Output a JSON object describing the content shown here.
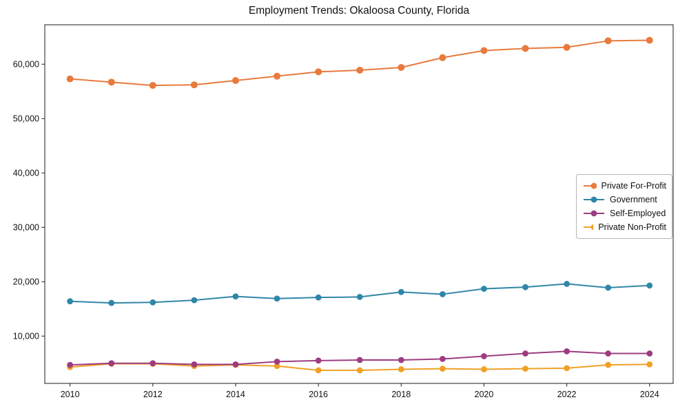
{
  "figure": {
    "title": "Employment Trends: Okaloosa County, Florida"
  },
  "chart_data": {
    "type": "line",
    "title": "Employment Trends: Okaloosa County, Florida",
    "xlabel": "",
    "ylabel": "",
    "grid": false,
    "legend_position": "center right",
    "x": [
      2010,
      2011,
      2012,
      2013,
      2014,
      2015,
      2016,
      2017,
      2018,
      2019,
      2020,
      2021,
      2022,
      2023,
      2024
    ],
    "series": [
      {
        "name": "Private For-Profit",
        "color": "#e87a3d",
        "values": [
          57300,
          56700,
          56100,
          56200,
          57000,
          57800,
          58600,
          58900,
          59400,
          61200,
          62500,
          62900,
          63100,
          64300,
          64400
        ]
      },
      {
        "name": "Government",
        "color": "#2f86a8",
        "values": [
          16400,
          16100,
          16200,
          16600,
          17300,
          16900,
          17100,
          17200,
          18100,
          17700,
          18700,
          19000,
          19600,
          18900,
          19300
        ]
      },
      {
        "name": "Self-Employed",
        "color": "#9d3c80",
        "values": [
          4700,
          5000,
          5000,
          4800,
          4800,
          5300,
          5500,
          5600,
          5600,
          5800,
          6300,
          6800,
          7200,
          6800,
          6800
        ]
      },
      {
        "name": "Private Non-Profit",
        "color": "#f0a126",
        "values": [
          4300,
          4900,
          4900,
          4500,
          4700,
          4500,
          3700,
          3700,
          3900,
          4000,
          3900,
          4000,
          4100,
          4700,
          4800
        ]
      }
    ],
    "xlim": [
      2009.39,
      2024.57
    ],
    "ylim": [
      1300,
      67250
    ],
    "x_ticks": [
      2010,
      2012,
      2014,
      2016,
      2018,
      2020,
      2022,
      2024
    ],
    "y_ticks": [
      10000,
      20000,
      30000,
      40000,
      50000,
      60000
    ],
    "y_tick_labels": [
      "10,000",
      "20,000",
      "30,000",
      "40,000",
      "50,000",
      "60,000"
    ],
    "frame_color": "#1a1a1a"
  }
}
